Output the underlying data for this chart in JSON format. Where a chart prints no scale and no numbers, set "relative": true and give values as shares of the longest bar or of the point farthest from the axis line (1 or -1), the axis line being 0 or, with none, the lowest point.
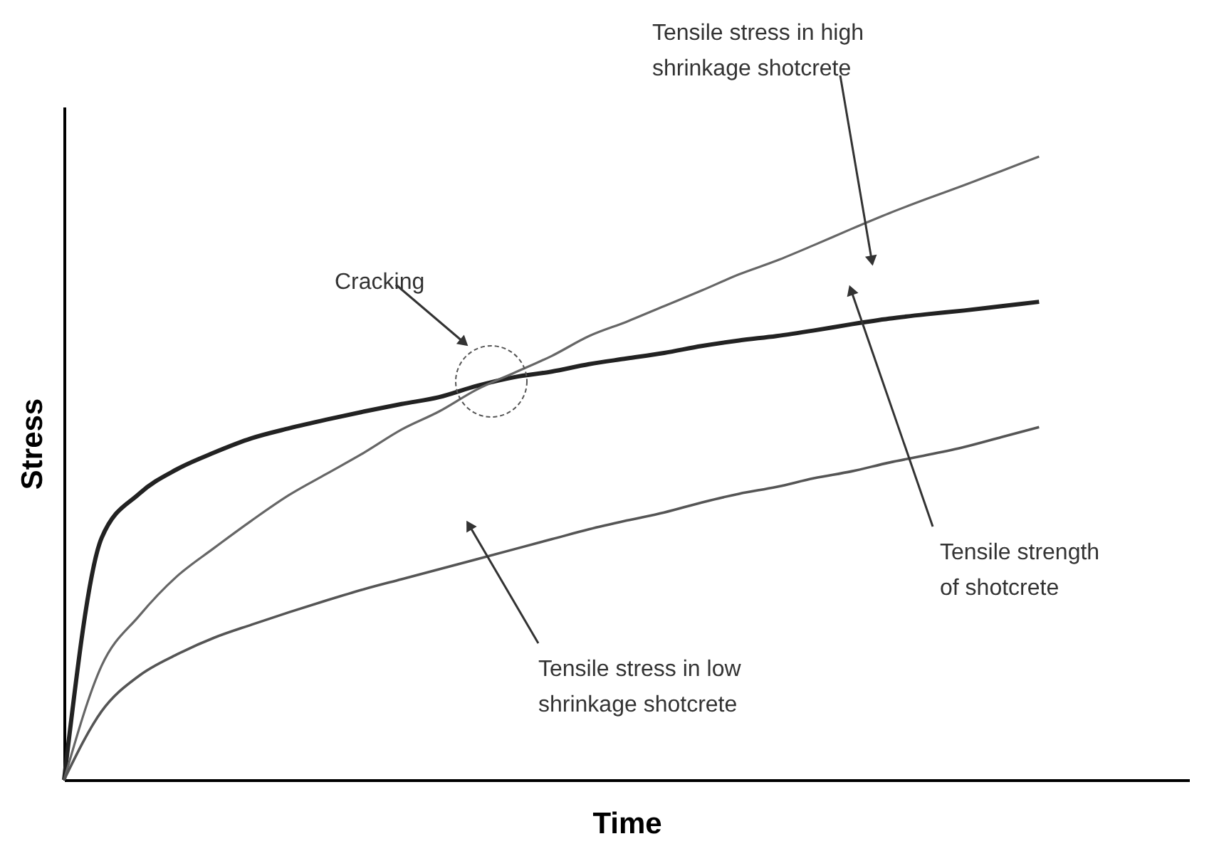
{
  "chart_data": {
    "type": "line",
    "relative": true,
    "xlabel": "Time",
    "ylabel": "Stress",
    "categories": [
      null,
      null,
      null,
      null,
      null,
      null,
      null,
      null,
      null,
      null,
      null,
      null,
      null,
      null,
      null,
      null,
      null,
      null,
      null,
      null,
      null,
      null,
      null,
      null,
      null,
      null,
      null,
      null,
      null,
      null,
      null
    ],
    "series": [
      {
        "color": "#222222",
        "values": [
          0,
          0.388,
          0.459,
          0.498,
          0.525,
          0.548,
          0.564,
          0.578,
          0.591,
          0.603,
          0.614,
          0.632,
          0.646,
          0.655,
          0.667,
          0.676,
          0.685,
          0.696,
          0.705,
          0.712,
          0.721,
          0.731,
          0.74,
          0.747,
          0.753,
          0.76,
          0.767,
          null,
          null,
          null,
          null
        ]
      },
      {
        "color": "#666666",
        "values": [
          0,
          0.183,
          0.263,
          0.326,
          0.372,
          0.416,
          0.457,
          0.491,
          0.525,
          0.562,
          0.591,
          0.626,
          0.653,
          0.68,
          0.712,
          0.735,
          0.76,
          0.785,
          0.811,
          0.833,
          0.858,
          0.884,
          0.909,
          0.932,
          0.954,
          0.977,
          1,
          null,
          null,
          null,
          null
        ]
      },
      {
        "color": "#555555",
        "values": [
          0,
          0.11,
          0.167,
          0.201,
          0.228,
          0.249,
          0.269,
          0.288,
          0.306,
          0.322,
          0.338,
          0.354,
          0.37,
          0.386,
          0.402,
          0.416,
          0.429,
          0.445,
          0.459,
          0.47,
          0.484,
          0.495,
          0.509,
          0.521,
          0.534,
          0.55,
          0.566,
          null,
          null,
          null,
          null
        ]
      }
    ],
    "annotations": [
      "Tensile stress in high\nshrinkage shotcrete",
      "Cracking",
      "Tensile strength\nof shotcrete",
      "Tensile stress in low\nshrinkage shotcrete"
    ]
  }
}
